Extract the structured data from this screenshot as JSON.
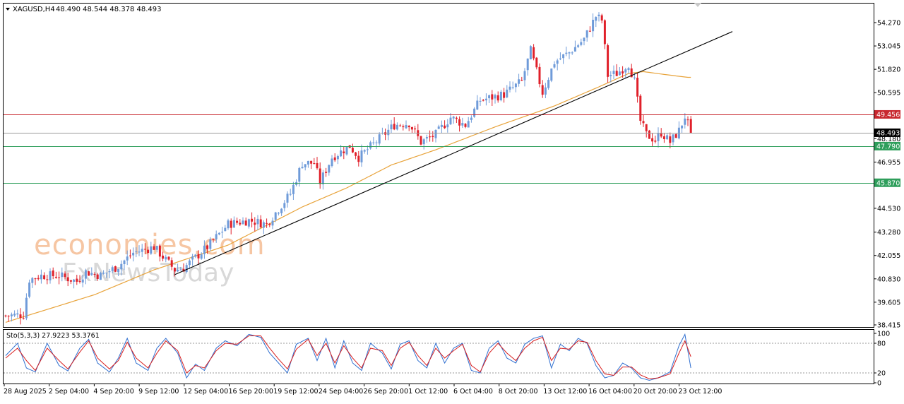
{
  "header": {
    "symbol": "XAGUSD,H4",
    "ohlc": "48.490 48.544 48.378 48.493"
  },
  "watermark": {
    "line1": "economies.com",
    "line2": "FxNewsToday"
  },
  "oscillator": {
    "label": "Sto(5,3,3) 27.9223 53.3761"
  },
  "colors": {
    "bull": "#6f9bd9",
    "bear": "#e0202a",
    "ma": "#e8a33a",
    "trendline": "#000000",
    "resistance": "#c8282f",
    "support": "#2e9e5b",
    "current": "#000000",
    "stoch_main": "#2f6fd0",
    "stoch_signal": "#d81e1e"
  },
  "chart_data": [
    {
      "type": "candlestick",
      "ylim": [
        38.0,
        55.0
      ],
      "yticks": [
        "54.270",
        "53.045",
        "51.820",
        "50.595",
        "48.180",
        "46.955",
        "44.530",
        "43.280",
        "42.055",
        "40.830",
        "39.605",
        "38.415"
      ],
      "xticks": [
        "28 Aug 2025",
        "2 Sep 04:00",
        "4 Sep 20:00",
        "9 Sep 12:00",
        "12 Sep 04:00",
        "16 Sep 20:00",
        "19 Sep 12:00",
        "24 Sep 04:00",
        "26 Sep 20:00",
        "1 Oct 12:00",
        "6 Oct 04:00",
        "8 Oct 20:00",
        "13 Oct 12:00",
        "16 Oct 04:00",
        "20 Oct 20:00",
        "23 Oct 12:00"
      ],
      "levels": [
        {
          "label": "49.456",
          "value": 49.456,
          "kind": "resistance"
        },
        {
          "label": "48.493",
          "value": 48.493,
          "kind": "current"
        },
        {
          "label": "47.790",
          "value": 47.79,
          "kind": "support"
        },
        {
          "label": "45.870",
          "value": 45.87,
          "kind": "support"
        }
      ],
      "anchors": [
        [
          0,
          38.9
        ],
        [
          6,
          38.95
        ],
        [
          8,
          40.8
        ],
        [
          12,
          41.0
        ],
        [
          18,
          41.0
        ],
        [
          24,
          40.7
        ],
        [
          27,
          41.2
        ],
        [
          32,
          41.0
        ],
        [
          38,
          41.5
        ],
        [
          43,
          42.2
        ],
        [
          50,
          42.5
        ],
        [
          57,
          41.3
        ],
        [
          60,
          41.4
        ],
        [
          68,
          42.5
        ],
        [
          75,
          43.7
        ],
        [
          82,
          43.9
        ],
        [
          88,
          43.7
        ],
        [
          96,
          45.3
        ],
        [
          100,
          46.9
        ],
        [
          104,
          46.9
        ],
        [
          106,
          45.9
        ],
        [
          110,
          47.2
        ],
        [
          116,
          47.8
        ],
        [
          119,
          47.2
        ],
        [
          124,
          47.9
        ],
        [
          131,
          48.9
        ],
        [
          136,
          49.0
        ],
        [
          140,
          48.0
        ],
        [
          145,
          48.4
        ],
        [
          150,
          49.3
        ],
        [
          155,
          48.9
        ],
        [
          160,
          50.2
        ],
        [
          168,
          50.5
        ],
        [
          174,
          51.2
        ],
        [
          177,
          52.8
        ],
        [
          181,
          50.6
        ],
        [
          185,
          52.2
        ],
        [
          190,
          52.7
        ],
        [
          195,
          53.4
        ],
        [
          199,
          54.6
        ],
        [
          201,
          54.4
        ],
        [
          203,
          51.5
        ],
        [
          206,
          51.6
        ],
        [
          210,
          52.1
        ],
        [
          212,
          51.2
        ],
        [
          214,
          49.1
        ],
        [
          216,
          48.4
        ],
        [
          219,
          48.1
        ],
        [
          221,
          48.5
        ],
        [
          224,
          48.0
        ],
        [
          227,
          48.6
        ],
        [
          229,
          49.35
        ],
        [
          231,
          48.5
        ]
      ],
      "moving_average": [
        [
          0,
          38.55
        ],
        [
          30,
          40.0
        ],
        [
          50,
          41.3
        ],
        [
          75,
          42.6
        ],
        [
          100,
          44.6
        ],
        [
          115,
          45.6
        ],
        [
          130,
          46.8
        ],
        [
          145,
          47.6
        ],
        [
          165,
          48.8
        ],
        [
          185,
          49.9
        ],
        [
          200,
          50.9
        ],
        [
          210,
          51.6
        ],
        [
          215,
          51.7
        ],
        [
          222,
          51.55
        ],
        [
          230,
          51.4
        ]
      ],
      "trendline": {
        "from": [
          57,
          41.05
        ],
        "to": [
          245,
          53.8
        ]
      }
    },
    {
      "type": "line",
      "ylim": [
        0,
        100
      ],
      "yticks": [
        "100",
        "80",
        "20",
        "0"
      ],
      "guides": [
        80,
        20
      ],
      "series": [
        {
          "role": "main",
          "anchors": [
            [
              0,
              55
            ],
            [
              4,
              80
            ],
            [
              7,
              30
            ],
            [
              10,
              22
            ],
            [
              14,
              80
            ],
            [
              18,
              35
            ],
            [
              21,
              24
            ],
            [
              25,
              70
            ],
            [
              28,
              88
            ],
            [
              31,
              40
            ],
            [
              35,
              22
            ],
            [
              38,
              50
            ],
            [
              41,
              90
            ],
            [
              44,
              40
            ],
            [
              48,
              25
            ],
            [
              51,
              70
            ],
            [
              54,
              90
            ],
            [
              58,
              60
            ],
            [
              61,
              10
            ],
            [
              64,
              38
            ],
            [
              67,
              25
            ],
            [
              71,
              70
            ],
            [
              74,
              85
            ],
            [
              78,
              75
            ],
            [
              82,
              98
            ],
            [
              86,
              92
            ],
            [
              89,
              60
            ],
            [
              92,
              40
            ],
            [
              95,
              20
            ],
            [
              98,
              78
            ],
            [
              102,
              90
            ],
            [
              105,
              45
            ],
            [
              108,
              90
            ],
            [
              111,
              30
            ],
            [
              114,
              85
            ],
            [
              117,
              40
            ],
            [
              120,
              25
            ],
            [
              123,
              80
            ],
            [
              127,
              60
            ],
            [
              130,
              28
            ],
            [
              133,
              78
            ],
            [
              136,
              85
            ],
            [
              139,
              45
            ],
            [
              142,
              30
            ],
            [
              145,
              80
            ],
            [
              148,
              40
            ],
            [
              151,
              70
            ],
            [
              154,
              80
            ],
            [
              157,
              25
            ],
            [
              160,
              20
            ],
            [
              163,
              70
            ],
            [
              166,
              85
            ],
            [
              169,
              50
            ],
            [
              172,
              40
            ],
            [
              175,
              78
            ],
            [
              178,
              90
            ],
            [
              181,
              95
            ],
            [
              184,
              30
            ],
            [
              187,
              78
            ],
            [
              190,
              65
            ],
            [
              193,
              90
            ],
            [
              196,
              80
            ],
            [
              199,
              35
            ],
            [
              202,
              10
            ],
            [
              205,
              15
            ],
            [
              208,
              40
            ],
            [
              211,
              30
            ],
            [
              214,
              10
            ],
            [
              217,
              5
            ],
            [
              220,
              10
            ],
            [
              224,
              22
            ],
            [
              227,
              75
            ],
            [
              229,
              98
            ],
            [
              231,
              30
            ]
          ]
        },
        {
          "role": "signal",
          "anchors": [
            [
              0,
              50
            ],
            [
              4,
              70
            ],
            [
              7,
              45
            ],
            [
              10,
              25
            ],
            [
              14,
              70
            ],
            [
              18,
              45
            ],
            [
              21,
              28
            ],
            [
              25,
              62
            ],
            [
              28,
              85
            ],
            [
              31,
              50
            ],
            [
              35,
              28
            ],
            [
              38,
              45
            ],
            [
              41,
              82
            ],
            [
              44,
              50
            ],
            [
              48,
              30
            ],
            [
              51,
              60
            ],
            [
              54,
              85
            ],
            [
              58,
              65
            ],
            [
              61,
              20
            ],
            [
              64,
              35
            ],
            [
              67,
              30
            ],
            [
              71,
              65
            ],
            [
              74,
              80
            ],
            [
              78,
              78
            ],
            [
              82,
              95
            ],
            [
              86,
              95
            ],
            [
              89,
              70
            ],
            [
              92,
              48
            ],
            [
              95,
              28
            ],
            [
              98,
              68
            ],
            [
              102,
              88
            ],
            [
              105,
              55
            ],
            [
              108,
              80
            ],
            [
              111,
              40
            ],
            [
              114,
              75
            ],
            [
              117,
              50
            ],
            [
              120,
              30
            ],
            [
              123,
              70
            ],
            [
              127,
              65
            ],
            [
              130,
              35
            ],
            [
              133,
              70
            ],
            [
              136,
              82
            ],
            [
              139,
              55
            ],
            [
              142,
              35
            ],
            [
              145,
              70
            ],
            [
              148,
              50
            ],
            [
              151,
              65
            ],
            [
              154,
              78
            ],
            [
              157,
              35
            ],
            [
              160,
              22
            ],
            [
              163,
              60
            ],
            [
              166,
              80
            ],
            [
              169,
              60
            ],
            [
              172,
              45
            ],
            [
              175,
              70
            ],
            [
              178,
              85
            ],
            [
              181,
              92
            ],
            [
              184,
              45
            ],
            [
              187,
              70
            ],
            [
              190,
              68
            ],
            [
              193,
              85
            ],
            [
              196,
              82
            ],
            [
              199,
              45
            ],
            [
              202,
              18
            ],
            [
              205,
              15
            ],
            [
              208,
              32
            ],
            [
              211,
              32
            ],
            [
              214,
              16
            ],
            [
              217,
              8
            ],
            [
              220,
              10
            ],
            [
              224,
              18
            ],
            [
              227,
              60
            ],
            [
              229,
              85
            ],
            [
              231,
              53
            ]
          ]
        }
      ]
    }
  ]
}
